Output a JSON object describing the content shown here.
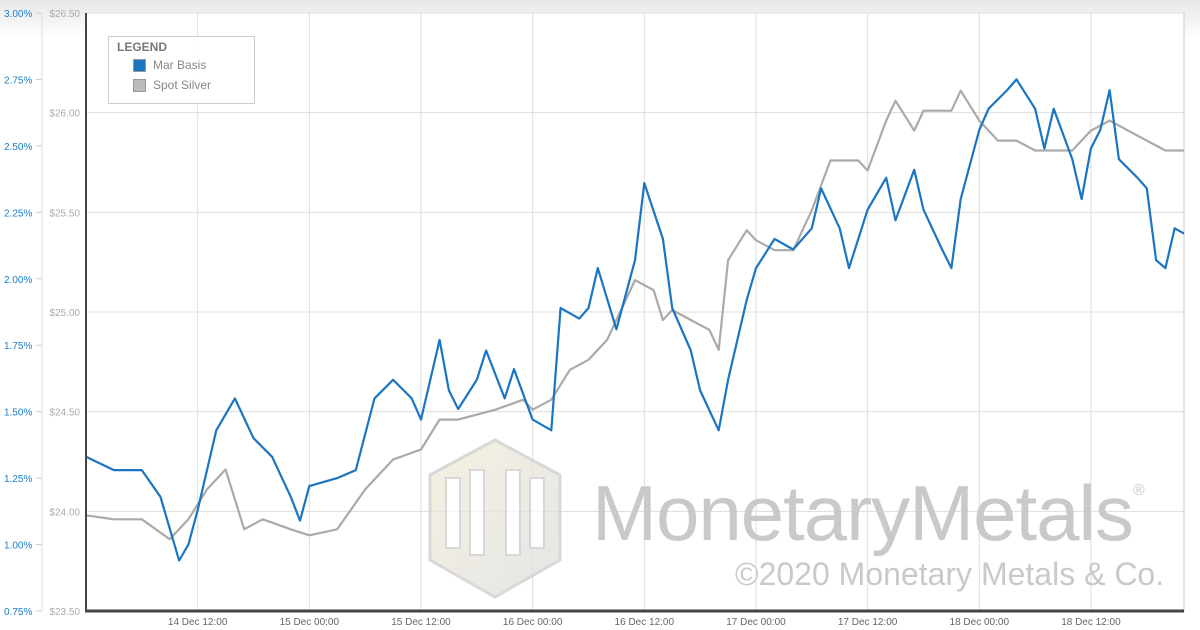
{
  "chart_data": {
    "type": "line",
    "legend": {
      "title": "LEGEND",
      "placement": "top-left"
    },
    "x_ticks": [
      "14 Dec 12:00",
      "15 Dec 00:00",
      "15 Dec 12:00",
      "16 Dec 00:00",
      "16 Dec 12:00",
      "17 Dec 00:00",
      "17 Dec 12:00",
      "18 Dec 00:00",
      "18 Dec 12:00"
    ],
    "xlim": [
      "14 Dec 00:00",
      "18 Dec 22:00"
    ],
    "y_left": {
      "ticks": [
        "0.75%",
        "1.00%",
        "1.25%",
        "1.50%",
        "1.75%",
        "2.00%",
        "2.25%",
        "2.50%",
        "2.75%",
        "3.00%"
      ],
      "lim": [
        0.75,
        3.0
      ],
      "color": "#1a7fc9"
    },
    "y_right_inner": {
      "ticks": [
        "$23.50",
        "$24.00",
        "$24.50",
        "$25.00",
        "$25.50",
        "$26.00",
        "$26.50"
      ],
      "lim": [
        23.5,
        26.5
      ]
    },
    "grid": true,
    "series": [
      {
        "name": "Mar Basis",
        "axis": "percent",
        "color": "#1a75c2",
        "x": [
          "14 Dec 00:00",
          "14 Dec 03:00",
          "14 Dec 06:00",
          "14 Dec 08:00",
          "14 Dec 10:00",
          "14 Dec 11:00",
          "14 Dec 12:00",
          "14 Dec 14:00",
          "14 Dec 16:00",
          "14 Dec 18:00",
          "14 Dec 20:00",
          "14 Dec 22:00",
          "14 Dec 23:00",
          "15 Dec 00:00",
          "15 Dec 03:00",
          "15 Dec 05:00",
          "15 Dec 07:00",
          "15 Dec 09:00",
          "15 Dec 11:00",
          "15 Dec 12:00",
          "15 Dec 14:00",
          "15 Dec 15:00",
          "15 Dec 16:00",
          "15 Dec 18:00",
          "15 Dec 19:00",
          "15 Dec 21:00",
          "15 Dec 22:00",
          "16 Dec 00:00",
          "16 Dec 02:00",
          "16 Dec 03:00",
          "16 Dec 05:00",
          "16 Dec 06:00",
          "16 Dec 07:00",
          "16 Dec 09:00",
          "16 Dec 11:00",
          "16 Dec 12:00",
          "16 Dec 14:00",
          "16 Dec 15:00",
          "16 Dec 17:00",
          "16 Dec 18:00",
          "16 Dec 20:00",
          "16 Dec 21:00",
          "16 Dec 23:00",
          "17 Dec 00:00",
          "17 Dec 02:00",
          "17 Dec 04:00",
          "17 Dec 06:00",
          "17 Dec 07:00",
          "17 Dec 09:00",
          "17 Dec 10:00",
          "17 Dec 12:00",
          "17 Dec 14:00",
          "17 Dec 15:00",
          "17 Dec 17:00",
          "17 Dec 18:00",
          "17 Dec 20:00",
          "17 Dec 21:00",
          "17 Dec 22:00",
          "18 Dec 00:00",
          "18 Dec 01:00",
          "18 Dec 03:00",
          "18 Dec 04:00",
          "18 Dec 06:00",
          "18 Dec 07:00",
          "18 Dec 08:00",
          "18 Dec 10:00",
          "18 Dec 11:00",
          "18 Dec 12:00",
          "18 Dec 13:00",
          "18 Dec 14:00",
          "18 Dec 15:00",
          "18 Dec 17:00",
          "18 Dec 18:00",
          "18 Dec 19:00",
          "18 Dec 20:00",
          "18 Dec 21:00",
          "18 Dec 22:00"
        ],
        "y": [
          1.33,
          1.28,
          1.28,
          1.18,
          0.94,
          1.0,
          1.13,
          1.43,
          1.55,
          1.4,
          1.33,
          1.18,
          1.09,
          1.22,
          1.25,
          1.28,
          1.55,
          1.62,
          1.55,
          1.47,
          1.77,
          1.58,
          1.51,
          1.62,
          1.73,
          1.55,
          1.66,
          1.47,
          1.43,
          1.89,
          1.85,
          1.89,
          2.04,
          1.81,
          2.07,
          2.36,
          2.15,
          1.89,
          1.73,
          1.58,
          1.43,
          1.62,
          1.92,
          2.04,
          2.15,
          2.11,
          2.19,
          2.34,
          2.19,
          2.04,
          2.26,
          2.38,
          2.22,
          2.41,
          2.26,
          2.11,
          2.04,
          2.3,
          2.56,
          2.64,
          2.71,
          2.75,
          2.64,
          2.49,
          2.64,
          2.45,
          2.3,
          2.49,
          2.56,
          2.71,
          2.45,
          2.38,
          2.34,
          2.07,
          2.04,
          2.19,
          2.17
        ]
      },
      {
        "name": "Spot Silver",
        "axis": "price",
        "color": "#aaaaaa",
        "x": [
          "14 Dec 00:00",
          "14 Dec 03:00",
          "14 Dec 06:00",
          "14 Dec 09:00",
          "14 Dec 11:00",
          "14 Dec 13:00",
          "14 Dec 15:00",
          "14 Dec 17:00",
          "14 Dec 19:00",
          "14 Dec 22:00",
          "15 Dec 00:00",
          "15 Dec 03:00",
          "15 Dec 06:00",
          "15 Dec 09:00",
          "15 Dec 12:00",
          "15 Dec 14:00",
          "15 Dec 16:00",
          "15 Dec 20:00",
          "15 Dec 23:00",
          "16 Dec 00:00",
          "16 Dec 02:00",
          "16 Dec 04:00",
          "16 Dec 06:00",
          "16 Dec 08:00",
          "16 Dec 11:00",
          "16 Dec 13:00",
          "16 Dec 14:00",
          "16 Dec 15:00",
          "16 Dec 17:00",
          "16 Dec 19:00",
          "16 Dec 20:00",
          "16 Dec 21:00",
          "16 Dec 23:00",
          "17 Dec 00:00",
          "17 Dec 02:00",
          "17 Dec 04:00",
          "17 Dec 06:00",
          "17 Dec 08:00",
          "17 Dec 11:00",
          "17 Dec 12:00",
          "17 Dec 14:00",
          "17 Dec 15:00",
          "17 Dec 17:00",
          "17 Dec 18:00",
          "17 Dec 21:00",
          "17 Dec 22:00",
          "18 Dec 00:00",
          "18 Dec 02:00",
          "18 Dec 04:00",
          "18 Dec 06:00",
          "18 Dec 08:00",
          "18 Dec 10:00",
          "18 Dec 12:00",
          "18 Dec 14:00",
          "18 Dec 16:00",
          "18 Dec 18:00",
          "18 Dec 20:00",
          "18 Dec 22:00"
        ],
        "y": [
          23.98,
          23.96,
          23.96,
          23.86,
          23.96,
          24.11,
          24.21,
          23.91,
          23.96,
          23.91,
          23.88,
          23.91,
          24.11,
          24.26,
          24.31,
          24.46,
          24.46,
          24.51,
          24.56,
          24.51,
          24.56,
          24.71,
          24.76,
          24.86,
          25.16,
          25.11,
          24.96,
          25.01,
          24.96,
          24.91,
          24.81,
          25.26,
          25.41,
          25.36,
          25.31,
          25.31,
          25.51,
          25.76,
          25.76,
          25.71,
          25.96,
          26.06,
          25.91,
          26.01,
          26.01,
          26.11,
          25.96,
          25.86,
          25.86,
          25.81,
          25.81,
          25.81,
          25.91,
          25.96,
          25.91,
          25.86,
          25.81,
          25.81
        ]
      }
    ]
  },
  "watermark": {
    "brand": "MonetaryMetals",
    "registered": "®",
    "copyright": "©2020 Monetary Metals & Co."
  }
}
